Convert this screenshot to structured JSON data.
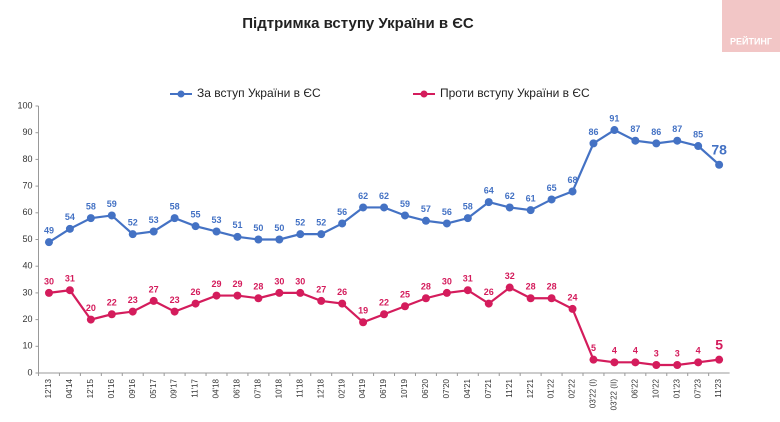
{
  "badge": "РЕЙТИНГ",
  "chart_data": {
    "type": "line",
    "title": "Підтримка вступу України в ЄС",
    "categories": [
      "12'13",
      "04'14",
      "12'15",
      "01'16",
      "09'16",
      "05'17",
      "09'17",
      "11'17",
      "04'18",
      "06'18",
      "07'18",
      "10'18",
      "11'18",
      "12'18",
      "02'19",
      "04'19",
      "06'19",
      "10'19",
      "06'20",
      "07'20",
      "04'21",
      "07'21",
      "11'21",
      "12'21",
      "01'22",
      "02'22",
      "03'22 (I)",
      "03'22 (II)",
      "06'22",
      "10'22",
      "01'23",
      "07'23",
      "11'23"
    ],
    "series": [
      {
        "name": "За вступ України в ЄС",
        "color": "#4472c4",
        "values": [
          49,
          54,
          58,
          59,
          52,
          53,
          58,
          55,
          53,
          51,
          50,
          50,
          52,
          52,
          56,
          62,
          62,
          59,
          57,
          56,
          58,
          64,
          62,
          61,
          65,
          68,
          86,
          91,
          87,
          86,
          87,
          85,
          78
        ]
      },
      {
        "name": "Проти вступу України в ЄС",
        "color": "#d41c5c",
        "values": [
          30,
          31,
          20,
          22,
          23,
          27,
          23,
          26,
          29,
          29,
          28,
          30,
          30,
          27,
          26,
          19,
          22,
          25,
          28,
          30,
          31,
          26,
          32,
          28,
          28,
          24,
          5,
          4,
          4,
          3,
          3,
          4,
          5
        ]
      }
    ],
    "ylim": [
      0,
      100
    ],
    "yticks": [
      0,
      10,
      20,
      30,
      40,
      50,
      60,
      70,
      80,
      90,
      100
    ],
    "grid": false
  }
}
